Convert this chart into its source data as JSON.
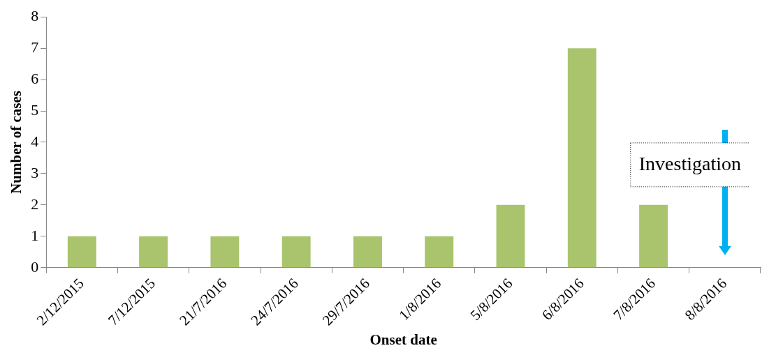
{
  "chart_data": {
    "type": "bar",
    "xlabel": "Onset date",
    "ylabel": "Number of cases",
    "categories": [
      "2/12/2015",
      "7/12/2015",
      "21/7/2016",
      "24/7/2016",
      "29/7/2016",
      "1/8/2016",
      "5/8/2016",
      "6/8/2016",
      "7/8/2016",
      "8/8/2016"
    ],
    "values": [
      1,
      1,
      1,
      1,
      1,
      1,
      2,
      7,
      2,
      null
    ],
    "color": "#a9c46c",
    "ylim": [
      0,
      8
    ],
    "yticks": [
      0,
      1,
      2,
      3,
      4,
      5,
      6,
      7,
      8
    ],
    "grid": false,
    "legend": false,
    "annotations": [
      "Investigation"
    ]
  }
}
